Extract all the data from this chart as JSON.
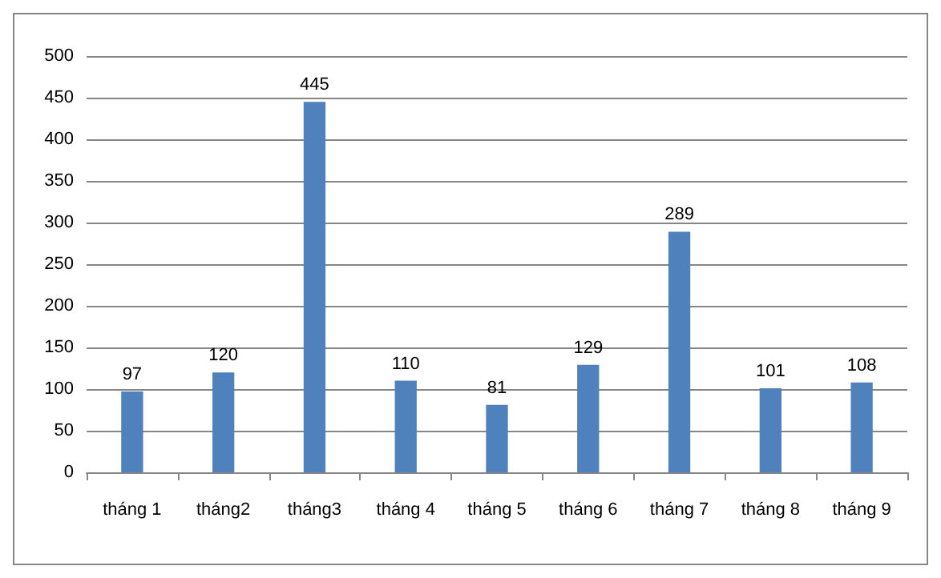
{
  "chart_data": {
    "type": "bar",
    "categories": [
      "tháng 1",
      "tháng2",
      "tháng3",
      "tháng 4",
      "tháng 5",
      "tháng 6",
      "tháng 7",
      "tháng 8",
      "tháng 9"
    ],
    "values": [
      97,
      120,
      445,
      110,
      81,
      129,
      289,
      101,
      108
    ],
    "color": "#4f81bd",
    "ylim": [
      0,
      500
    ],
    "yticks": [
      0,
      50,
      100,
      150,
      200,
      250,
      300,
      350,
      400,
      450,
      500
    ],
    "grid": "y",
    "data_labels": true
  }
}
